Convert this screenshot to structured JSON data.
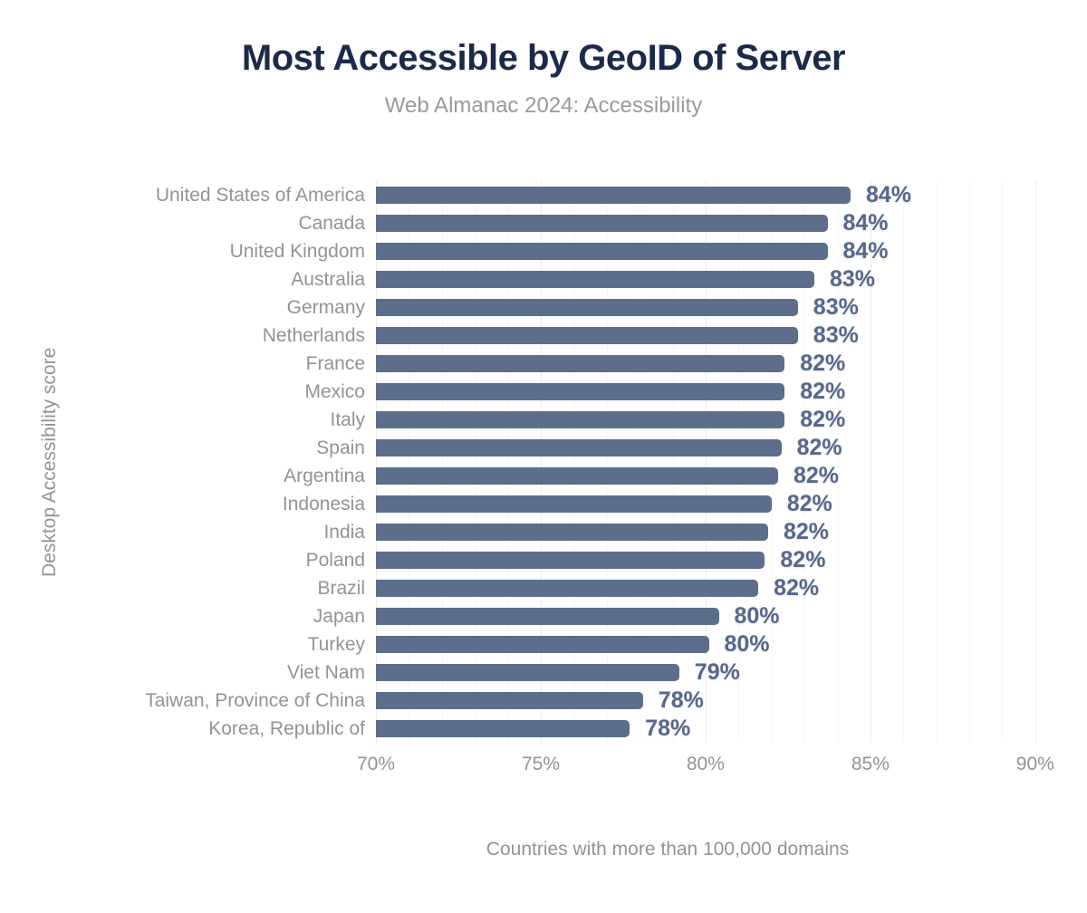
{
  "chart_data": {
    "type": "bar",
    "orientation": "horizontal",
    "title": "Most Accessible by GeoID of Server",
    "subtitle": "Web Almanac 2024: Accessibility",
    "ylabel": "Desktop Accessibility score",
    "xlabel": "Countries with more than 100,000 domains",
    "x_ticks": [
      "70%",
      "75%",
      "80%",
      "85%",
      "90%"
    ],
    "x_range": [
      70,
      90.5
    ],
    "grid": {
      "major_step": 5,
      "minor_step": 1,
      "major_color": "#ececec",
      "minor_color": "#f7f7f7"
    },
    "legend": "none",
    "bar_color": "#5c6e8c",
    "value_label_color": "#56688c",
    "title_color": "#1b2a4a",
    "axis_text_color": "#8f9499",
    "categories": [
      "United States of America",
      "Canada",
      "United Kingdom",
      "Australia",
      "Germany",
      "Netherlands",
      "France",
      "Mexico",
      "Italy",
      "Spain",
      "Argentina",
      "Indonesia",
      "India",
      "Poland",
      "Brazil",
      "Japan",
      "Turkey",
      "Viet Nam",
      "Taiwan, Province of China",
      "Korea, Republic of"
    ],
    "values": [
      84.4,
      83.7,
      83.7,
      83.3,
      82.8,
      82.8,
      82.4,
      82.4,
      82.4,
      82.3,
      82.2,
      82.0,
      81.9,
      81.8,
      81.6,
      80.4,
      80.1,
      79.2,
      78.1,
      77.7
    ],
    "value_labels": [
      "84%",
      "84%",
      "84%",
      "83%",
      "83%",
      "83%",
      "82%",
      "82%",
      "82%",
      "82%",
      "82%",
      "82%",
      "82%",
      "82%",
      "82%",
      "80%",
      "80%",
      "79%",
      "78%",
      "78%"
    ]
  }
}
